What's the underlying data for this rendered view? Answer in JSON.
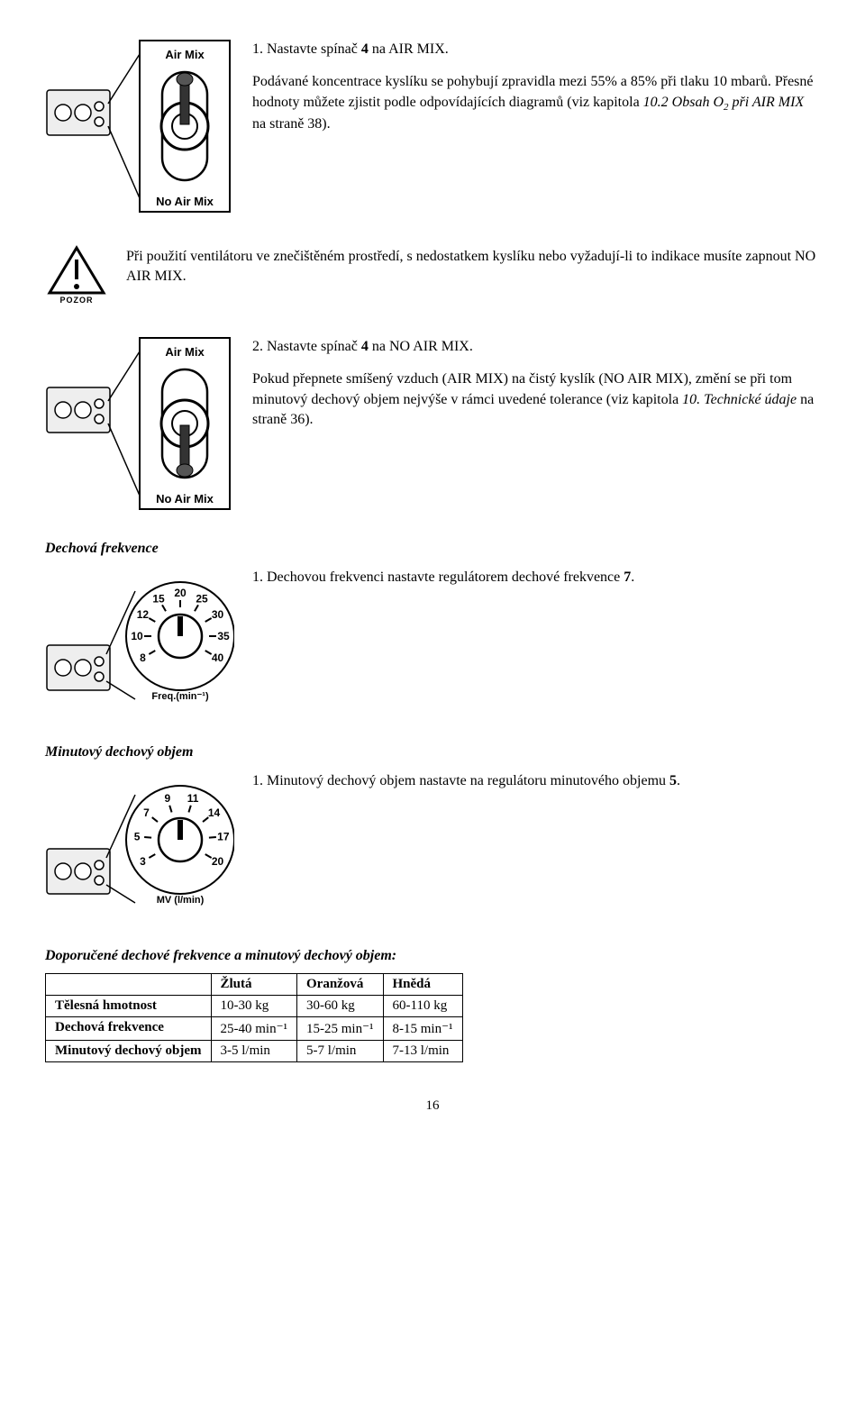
{
  "switch1": {
    "top_label": "Air Mix",
    "bottom_label": "No Air Mix"
  },
  "sec1": {
    "line1_a": "1. Nastavte spínač ",
    "line1_b": "4",
    "line1_c": " na AIR MIX.",
    "para2_a": "Podávané koncentrace kyslíku se pohybují zpravidla mezi 55% a 85% při tlaku 10 mbarů. Přesné hodnoty můžete zjistit podle odpovídajících diagramů (viz kapitola ",
    "para2_b": "10.2 Obsah O",
    "para2_sub": "2",
    "para2_c": " při AIR MIX",
    "para2_d": " na straně 38)."
  },
  "pozor": {
    "label": "POZOR",
    "text": "Při použití ventilátoru ve znečištěném prostředí, s nedostatkem kyslíku nebo vyžadují-li to indikace musíte zapnout NO AIR MIX."
  },
  "switch2": {
    "top_label": "Air Mix",
    "bottom_label": "No Air Mix"
  },
  "sec2": {
    "line1_a": "2. Nastavte spínač ",
    "line1_b": "4",
    "line1_c": " na NO AIR MIX.",
    "para2_a": "Pokud přepnete smíšený vzduch (AIR MIX) na čistý kyslík (NO AIR MIX), změní se při tom minutový dechový objem nejvýše v rámci uvedené tolerance (viz kapitola ",
    "para2_b": "10. Technické údaje",
    "para2_c": " na straně 36)."
  },
  "freq": {
    "heading": "Dechová frekvence",
    "dial_ticks": [
      "8",
      "10",
      "12",
      "15",
      "20",
      "25",
      "30",
      "35",
      "40"
    ],
    "dial_unit": "Freq.(min⁻¹)",
    "text_a": "1. Dechovou frekvenci nastavte regulátorem dechové frekvence ",
    "text_b": "7",
    "text_c": "."
  },
  "vol": {
    "heading": "Minutový dechový objem",
    "dial_ticks": [
      "3",
      "5",
      "7",
      "9",
      "11",
      "14",
      "17",
      "20"
    ],
    "dial_unit": "MV (l/min)",
    "text_a": "1. Minutový dechový objem nastavte na regulátoru minutového objemu ",
    "text_b": "5",
    "text_c": "."
  },
  "table": {
    "heading": "Doporučené dechové frekvence a minutový dechový objem:",
    "colheads": [
      "",
      "Žlutá",
      "Oranžová",
      "Hnědá"
    ],
    "rows": [
      [
        "Tělesná hmotnost",
        "10-30 kg",
        "30-60 kg",
        "60-110 kg"
      ],
      [
        "Dechová frekvence",
        "25-40 min⁻¹",
        "15-25 min⁻¹",
        "8-15 min⁻¹"
      ],
      [
        "Minutový dechový objem",
        "3-5 l/min",
        "5-7 l/min",
        "7-13 l/min"
      ]
    ]
  },
  "page": "16"
}
